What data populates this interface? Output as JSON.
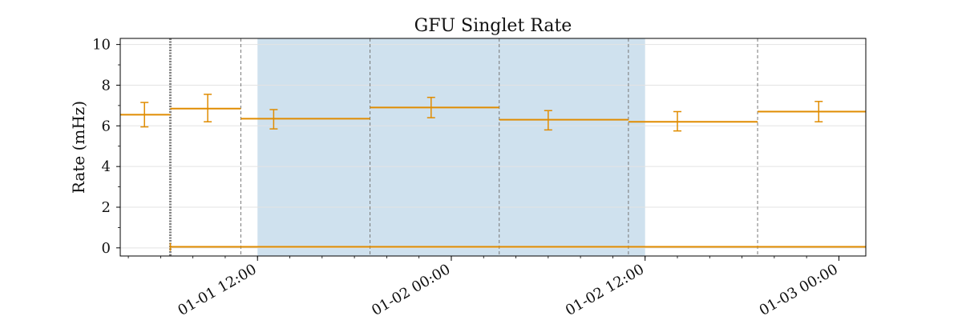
{
  "chart_data": {
    "type": "line",
    "title": "GFU Singlet Rate",
    "xlabel": "",
    "ylabel": "Rate (mHz)",
    "ylim": [
      -0.4,
      10.3
    ],
    "xlim": [
      "2025-01-01 03:30",
      "2025-01-03 01:40"
    ],
    "y_ticks": [
      0,
      2,
      4,
      6,
      8,
      10
    ],
    "x_ticks": [
      {
        "t": "2025-01-01 12:00",
        "label": "01-01 12:00"
      },
      {
        "t": "2025-01-02 00:00",
        "label": "01-02 00:00"
      },
      {
        "t": "2025-01-02 12:00",
        "label": "01-02 12:00"
      },
      {
        "t": "2025-01-03 00:00",
        "label": "01-03 00:00"
      }
    ],
    "grid": true,
    "colors": {
      "series": "#e08c00",
      "shade": "#cfe1ee",
      "marker": "#808080",
      "grid": "#e3e3e3",
      "axis": "#000000"
    },
    "shaded_region": [
      "2025-01-01 12:00",
      "2025-01-02 12:00"
    ],
    "vlines": [
      "2025-01-01 10:58",
      "2025-01-01 18:58",
      "2025-01-02 02:58",
      "2025-01-02 10:58",
      "2025-01-02 18:58"
    ],
    "event_marker": "2025-01-01 06:36",
    "series": [
      {
        "bins": [
          {
            "start": "2025-01-01 03:30",
            "end": "2025-01-01 06:36",
            "value": 6.55,
            "lo": 5.95,
            "hi": 7.15,
            "err_at": "2025-01-01 05:00"
          },
          {
            "start": "2025-01-01 06:36",
            "end": "2025-01-01 10:58",
            "value": 6.85,
            "lo": 6.2,
            "hi": 7.55,
            "err_at": "2025-01-01 08:55"
          },
          {
            "start": "2025-01-01 10:58",
            "end": "2025-01-01 18:58",
            "value": 6.35,
            "lo": 5.85,
            "hi": 6.8,
            "err_at": "2025-01-01 13:00"
          },
          {
            "start": "2025-01-01 18:58",
            "end": "2025-01-02 02:58",
            "value": 6.9,
            "lo": 6.4,
            "hi": 7.4,
            "err_at": "2025-01-01 22:45"
          },
          {
            "start": "2025-01-02 02:58",
            "end": "2025-01-02 10:58",
            "value": 6.3,
            "lo": 5.8,
            "hi": 6.75,
            "err_at": "2025-01-02 06:00"
          },
          {
            "start": "2025-01-02 10:58",
            "end": "2025-01-02 18:58",
            "value": 6.2,
            "lo": 5.75,
            "hi": 6.7,
            "err_at": "2025-01-02 14:00"
          },
          {
            "start": "2025-01-02 18:58",
            "end": "2025-01-03 01:40",
            "value": 6.7,
            "lo": 6.2,
            "hi": 7.2,
            "err_at": "2025-01-02 22:45"
          }
        ]
      },
      {
        "bins": [
          {
            "start": "2025-01-01 06:36",
            "end": "2025-01-03 01:40",
            "value": 0.05
          }
        ]
      }
    ]
  }
}
